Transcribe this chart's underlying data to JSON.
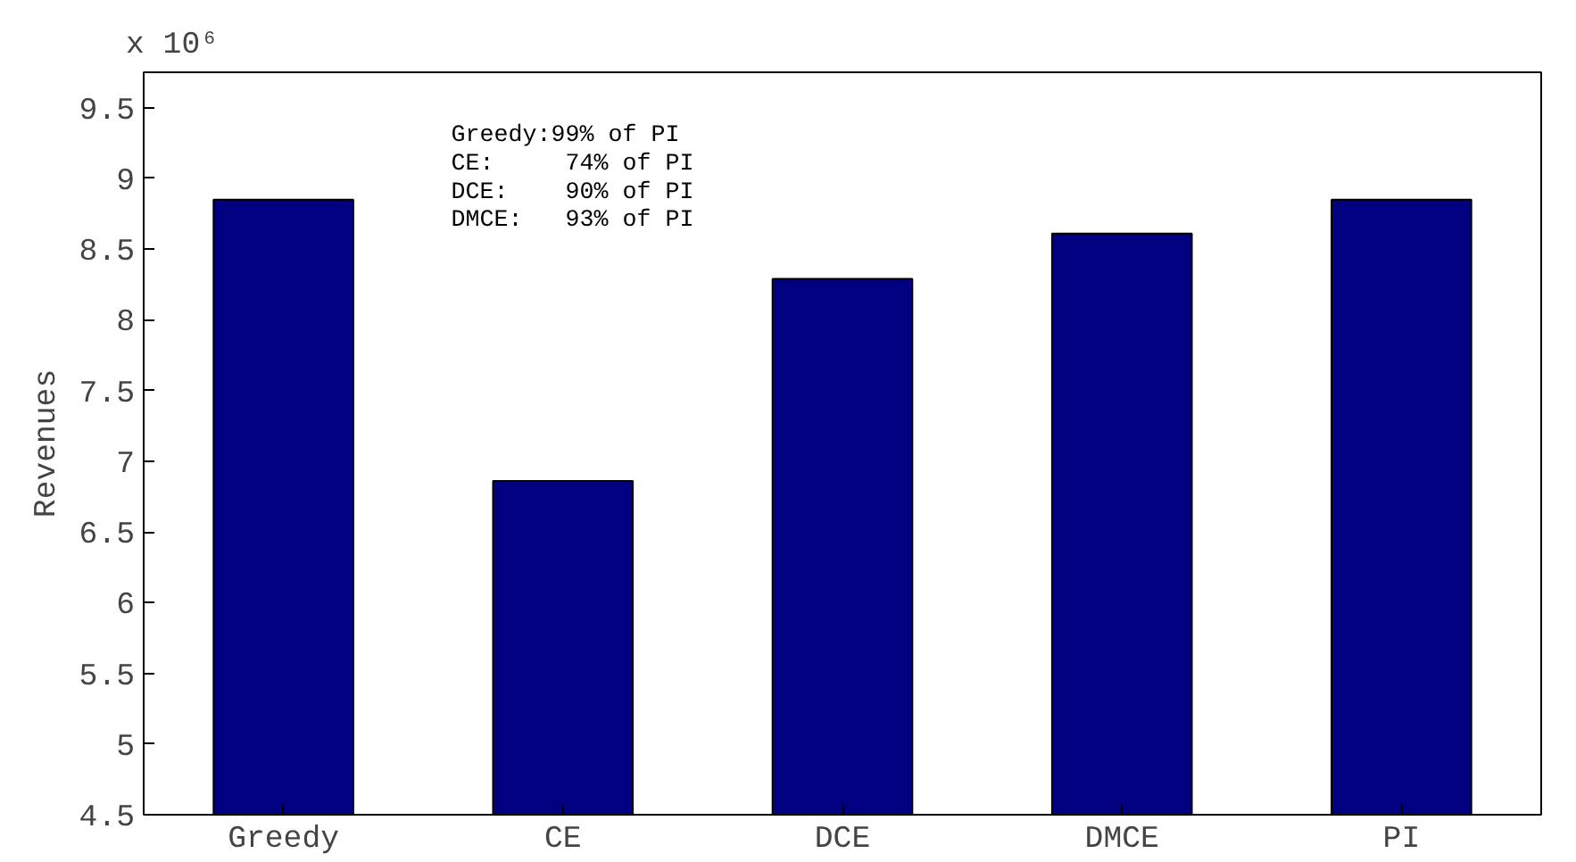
{
  "chart_data": {
    "type": "bar",
    "ylabel": "Revenues",
    "categories": [
      "Greedy",
      "CE",
      "DCE",
      "DMCE",
      "PI"
    ],
    "values": [
      8.85,
      6.86,
      8.29,
      8.61,
      8.85
    ],
    "color": "#000080",
    "ylim": [
      4.5,
      9.75
    ],
    "yticks": [
      4.5,
      5,
      5.5,
      6,
      6.5,
      7,
      7.5,
      8,
      8.5,
      9,
      9.5
    ],
    "grid": false,
    "annotations": [
      "x 10⁶",
      "Greedy:99% of PI",
      "CE:     74% of PI",
      "DCE:    90% of PI",
      "DMCE:   93% of PI"
    ]
  }
}
